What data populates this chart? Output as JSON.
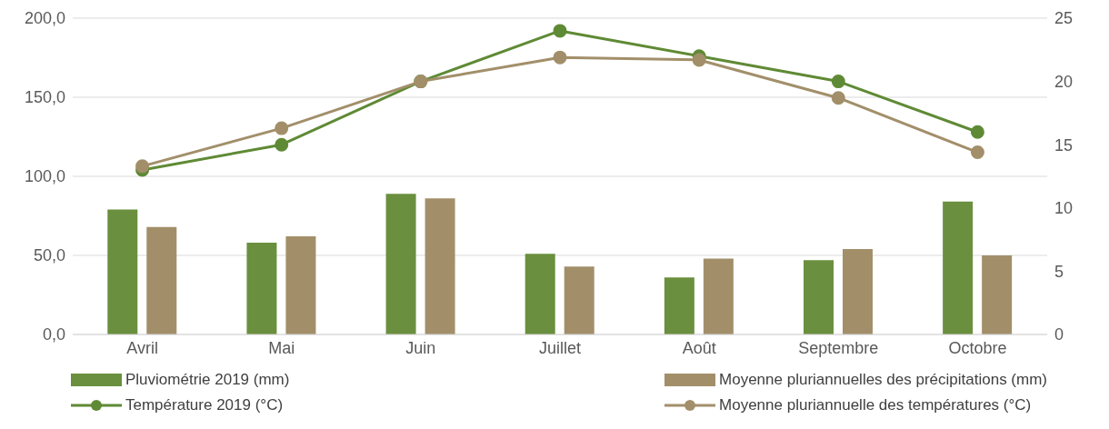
{
  "chart_data": {
    "type": "bar",
    "categories": [
      "Avril",
      "Mai",
      "Juin",
      "Juillet",
      "Août",
      "Septembre",
      "Octobre"
    ],
    "series": [
      {
        "name": "Pluviométrie 2019 (mm)",
        "color": "#6a8f3e",
        "values": [
          79,
          58,
          89,
          51,
          36,
          47,
          84
        ]
      },
      {
        "name": "Moyenne pluriannuelles des précipitations (mm)",
        "color": "#a28f6a",
        "values": [
          68,
          62,
          86,
          43,
          48,
          54,
          50
        ]
      },
      {
        "name": "Température 2019 (°C)",
        "type": "line",
        "axis": "y2",
        "color": "#5f8a35",
        "values": [
          13.0,
          15.0,
          20.0,
          24.0,
          22.0,
          20.0,
          16.0
        ]
      },
      {
        "name": "Moyenne pluriannuelle des températures (°C)",
        "type": "line",
        "axis": "y2",
        "color": "#a28f6a",
        "values": [
          13.3,
          16.3,
          20.0,
          21.9,
          21.7,
          18.7,
          14.4
        ]
      }
    ],
    "ylim": [
      0,
      200
    ],
    "yticks": [
      {
        "value": 0,
        "label": "0,0"
      },
      {
        "value": 50,
        "label": "50,0"
      },
      {
        "value": 100,
        "label": "100,0"
      },
      {
        "value": 150,
        "label": "150,0"
      },
      {
        "value": 200,
        "label": "200,0"
      }
    ],
    "y2lim": [
      0,
      25
    ],
    "y2ticks": [
      0,
      5,
      10,
      15,
      20,
      25
    ],
    "grid": "y",
    "legend": "bottom",
    "marker": "circle",
    "line_style": "solid"
  }
}
